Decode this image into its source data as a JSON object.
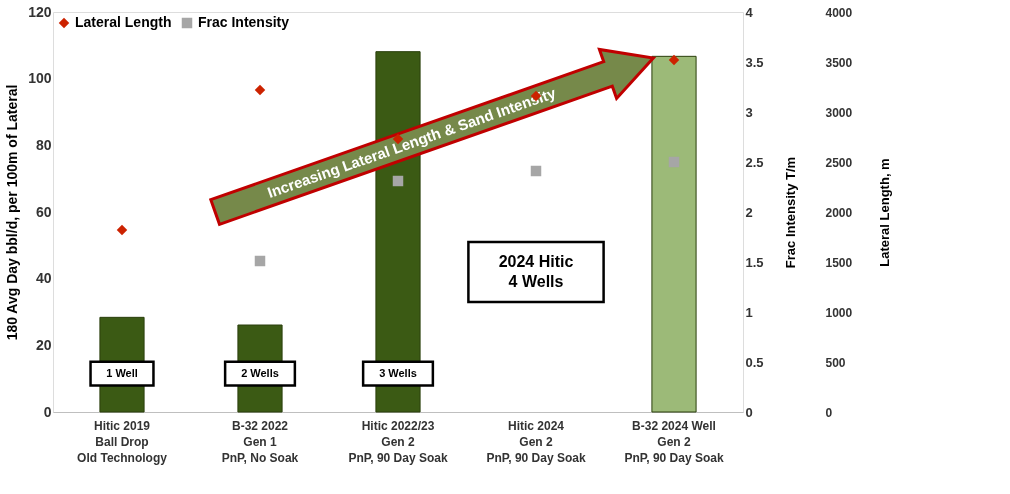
{
  "chart_data": {
    "type": "bar",
    "categories": [
      "Hitic 2019\nBall Drop\nOld Technology",
      "B-32 2022\nGen 1\nPnP, No Soak",
      "Hitic 2022/23\nGen 2\nPnP, 90 Day Soak",
      "Hitic 2024\nGen 2\nPnP, 90 Day Soak",
      "B-32 2024 Well\nGen 2\nPnP, 90 Day Soak"
    ],
    "ylabel": "180 Avg Day bbl/d, per 100m of Lateral",
    "y2label": "Frac Intensity T/m",
    "y3label": "Lateral Length, m",
    "ylim": [
      0,
      120
    ],
    "yticks": [
      0,
      20,
      40,
      60,
      80,
      100,
      120
    ],
    "y2lim": [
      0,
      4
    ],
    "y2ticks": [
      0,
      0.5,
      1,
      1.5,
      2,
      2.5,
      3,
      3.5,
      4
    ],
    "y3lim": [
      0,
      4000
    ],
    "y3ticks": [
      0,
      500,
      1000,
      1500,
      2000,
      2500,
      3000,
      3500,
      4000
    ],
    "series": [
      {
        "colors": [
          "#3b5a14",
          "#3b5a14",
          "#3b5a14",
          "#3b5a14",
          "#9cba78"
        ],
        "values": [
          28.4,
          26.1,
          108.1,
          null,
          106.7
        ]
      },
      {
        "type": "scatter",
        "name": "Lateral Length",
        "color": "#cc2200",
        "marker": "diamond",
        "axis": "y3",
        "values": [
          1820,
          3220,
          2730,
          3160,
          3520
        ]
      },
      {
        "type": "scatter",
        "name": "Frac Intensity",
        "color": "#a6a6a6",
        "marker": "square",
        "axis": "y2",
        "values": [
          null,
          1.51,
          2.31,
          2.41,
          2.5
        ]
      }
    ],
    "annotations": [
      "1 Well",
      "2 Wells",
      "3 Wells",
      "2024 Hitic\n4 Wells",
      "Increasing Lateral Length & Sand Intensity"
    ],
    "legend": "top left",
    "grid": false
  }
}
